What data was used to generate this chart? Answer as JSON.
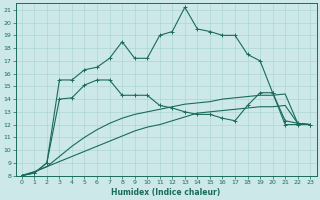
{
  "xlabel": "Humidex (Indice chaleur)",
  "bg_color": "#cce8e8",
  "grid_color": "#aed4d4",
  "line_color": "#1a6b5a",
  "xlim": [
    -0.5,
    23.5
  ],
  "ylim": [
    8,
    21.5
  ],
  "xticks": [
    0,
    1,
    2,
    3,
    4,
    5,
    6,
    7,
    8,
    9,
    10,
    11,
    12,
    13,
    14,
    15,
    16,
    17,
    18,
    19,
    20,
    21,
    22,
    23
  ],
  "yticks": [
    8,
    9,
    10,
    11,
    12,
    13,
    14,
    15,
    16,
    17,
    18,
    19,
    20,
    21
  ],
  "line1_x": [
    0,
    1,
    2,
    3,
    4,
    5,
    6,
    7,
    8,
    9,
    10,
    11,
    12,
    13,
    14,
    15,
    16,
    17,
    18,
    19,
    20,
    21,
    22,
    23
  ],
  "line1_y": [
    8.0,
    8.2,
    9.0,
    15.5,
    15.5,
    16.3,
    16.5,
    17.2,
    18.5,
    17.2,
    17.2,
    19.0,
    19.3,
    21.2,
    19.5,
    19.3,
    19.0,
    19.0,
    17.5,
    17.0,
    14.5,
    12.0,
    12.0,
    12.0
  ],
  "line2_x": [
    0,
    1,
    2,
    3,
    4,
    5,
    6,
    7,
    8,
    9,
    10,
    11,
    12,
    13,
    14,
    15,
    16,
    17,
    18,
    19,
    20,
    21,
    22,
    23
  ],
  "line2_y": [
    8.0,
    8.2,
    9.0,
    14.0,
    14.1,
    15.1,
    15.5,
    15.5,
    14.3,
    14.3,
    14.3,
    13.5,
    13.3,
    13.0,
    12.8,
    12.8,
    12.5,
    12.3,
    13.5,
    14.5,
    14.5,
    12.3,
    12.1,
    12.0
  ],
  "line3_x": [
    0,
    1,
    2,
    3,
    4,
    5,
    6,
    7,
    8,
    9,
    10,
    11,
    12,
    13,
    14,
    15,
    16,
    17,
    18,
    19,
    20,
    21,
    22,
    23
  ],
  "line3_y": [
    8.0,
    8.3,
    8.7,
    9.1,
    9.5,
    9.9,
    10.3,
    10.7,
    11.1,
    11.5,
    11.8,
    12.0,
    12.3,
    12.6,
    12.9,
    13.0,
    13.1,
    13.2,
    13.3,
    13.4,
    13.4,
    13.5,
    12.1,
    12.0
  ],
  "line4_x": [
    0,
    1,
    2,
    3,
    4,
    5,
    6,
    7,
    8,
    9,
    10,
    11,
    12,
    13,
    14,
    15,
    16,
    17,
    18,
    19,
    20,
    21,
    22,
    23
  ],
  "line4_y": [
    8.0,
    8.3,
    8.7,
    9.5,
    10.3,
    11.0,
    11.6,
    12.1,
    12.5,
    12.8,
    13.0,
    13.2,
    13.4,
    13.6,
    13.7,
    13.8,
    14.0,
    14.1,
    14.2,
    14.3,
    14.3,
    14.4,
    12.1,
    12.0
  ]
}
